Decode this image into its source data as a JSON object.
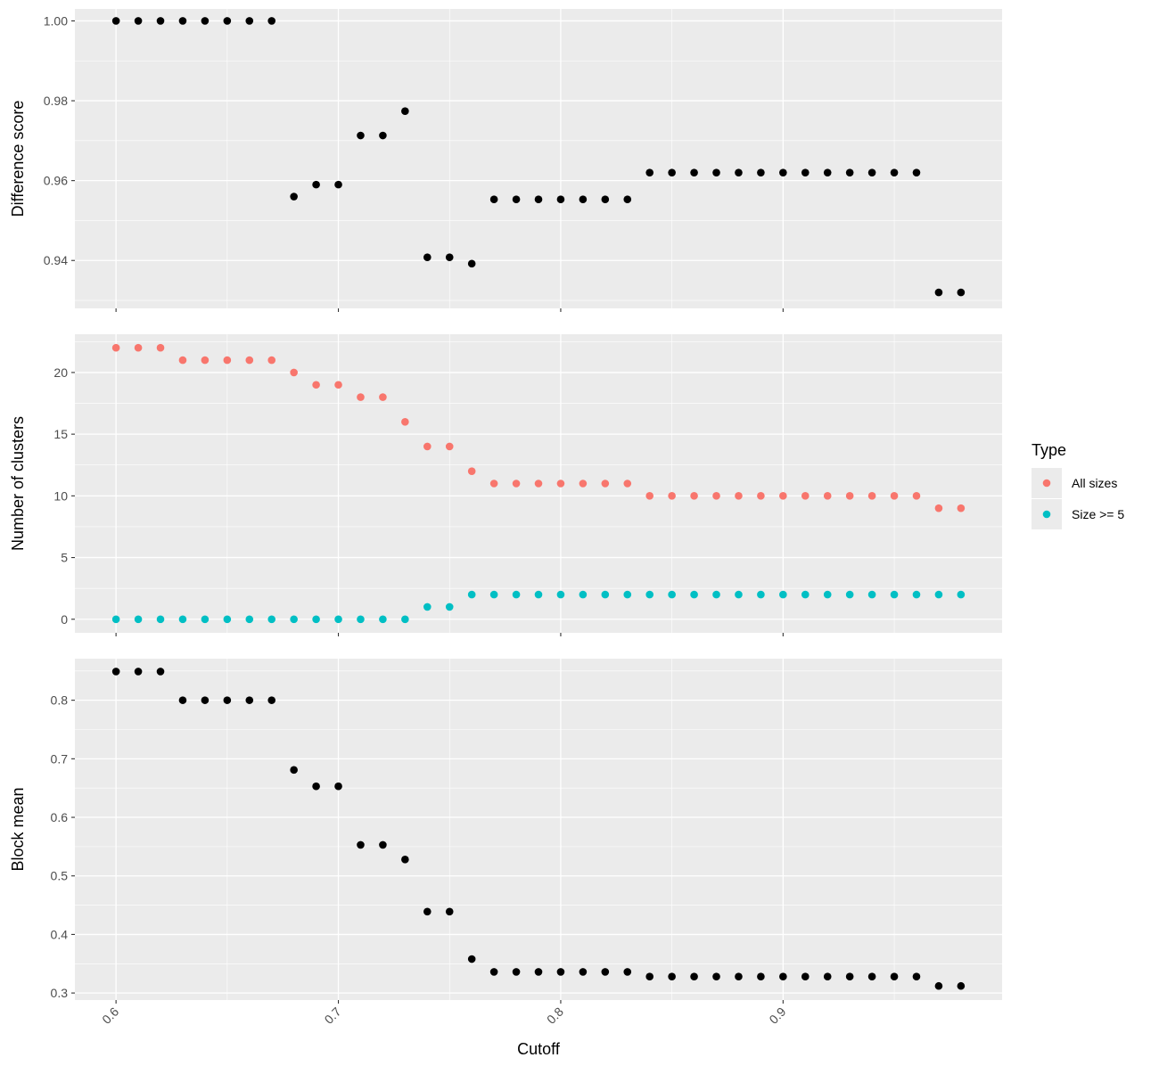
{
  "chart_data": [
    {
      "type": "scatter",
      "ylabel": "Difference score",
      "ylim": [
        0.928,
        1.003
      ],
      "yticks": [
        0.94,
        0.96,
        0.98,
        1.0
      ],
      "ytick_labels": [
        "0.94",
        "0.96",
        "0.98",
        "1.00"
      ],
      "grid": true,
      "series": [
        {
          "color": "#000000",
          "x": [
            0.6,
            0.61,
            0.62,
            0.63,
            0.64,
            0.65,
            0.66,
            0.67,
            0.68,
            0.69,
            0.7,
            0.71,
            0.72,
            0.73,
            0.74,
            0.75,
            0.76,
            0.77,
            0.78,
            0.79,
            0.8,
            0.81,
            0.82,
            0.83,
            0.84,
            0.85,
            0.86,
            0.87,
            0.88,
            0.89,
            0.9,
            0.91,
            0.92,
            0.93,
            0.94,
            0.95,
            0.96,
            0.97,
            0.98
          ],
          "y": [
            1.0,
            1.0,
            1.0,
            1.0,
            1.0,
            1.0,
            1.0,
            1.0,
            0.956,
            0.959,
            0.959,
            0.9713,
            0.9713,
            0.9774,
            0.9408,
            0.9408,
            0.9392,
            0.9553,
            0.9553,
            0.9553,
            0.9553,
            0.9553,
            0.9553,
            0.9553,
            0.962,
            0.962,
            0.962,
            0.962,
            0.962,
            0.962,
            0.962,
            0.962,
            0.962,
            0.962,
            0.962,
            0.962,
            0.962,
            0.932,
            0.932
          ]
        }
      ]
    },
    {
      "type": "scatter",
      "ylabel": "Number of clusters",
      "ylim": [
        -1.1,
        23.1
      ],
      "yticks": [
        0,
        5,
        10,
        15,
        20
      ],
      "ytick_labels": [
        "0",
        "5",
        "10",
        "15",
        "20"
      ],
      "grid": true,
      "legend": {
        "title": "Type",
        "placement": "right"
      },
      "series": [
        {
          "name": "All sizes",
          "color": "#F8766D",
          "x": [
            0.6,
            0.61,
            0.62,
            0.63,
            0.64,
            0.65,
            0.66,
            0.67,
            0.68,
            0.69,
            0.7,
            0.71,
            0.72,
            0.73,
            0.74,
            0.75,
            0.76,
            0.77,
            0.78,
            0.79,
            0.8,
            0.81,
            0.82,
            0.83,
            0.84,
            0.85,
            0.86,
            0.87,
            0.88,
            0.89,
            0.9,
            0.91,
            0.92,
            0.93,
            0.94,
            0.95,
            0.96,
            0.97,
            0.98
          ],
          "y": [
            22,
            22,
            22,
            21,
            21,
            21,
            21,
            21,
            20,
            19,
            19,
            18,
            18,
            16,
            14,
            14,
            12,
            11,
            11,
            11,
            11,
            11,
            11,
            11,
            10,
            10,
            10,
            10,
            10,
            10,
            10,
            10,
            10,
            10,
            10,
            10,
            10,
            9,
            9
          ]
        },
        {
          "name": "Size >= 5",
          "color": "#00BFC4",
          "x": [
            0.6,
            0.61,
            0.62,
            0.63,
            0.64,
            0.65,
            0.66,
            0.67,
            0.68,
            0.69,
            0.7,
            0.71,
            0.72,
            0.73,
            0.74,
            0.75,
            0.76,
            0.77,
            0.78,
            0.79,
            0.8,
            0.81,
            0.82,
            0.83,
            0.84,
            0.85,
            0.86,
            0.87,
            0.88,
            0.89,
            0.9,
            0.91,
            0.92,
            0.93,
            0.94,
            0.95,
            0.96,
            0.97,
            0.98
          ],
          "y": [
            0,
            0,
            0,
            0,
            0,
            0,
            0,
            0,
            0,
            0,
            0,
            0,
            0,
            0,
            1,
            1,
            2,
            2,
            2,
            2,
            2,
            2,
            2,
            2,
            2,
            2,
            2,
            2,
            2,
            2,
            2,
            2,
            2,
            2,
            2,
            2,
            2,
            2,
            2
          ]
        }
      ]
    },
    {
      "type": "scatter",
      "xlabel": "Cutoff",
      "ylabel": "Block mean",
      "ylim": [
        0.288,
        0.871
      ],
      "yticks": [
        0.3,
        0.4,
        0.5,
        0.6,
        0.7,
        0.8
      ],
      "ytick_labels": [
        "0.3",
        "0.4",
        "0.5",
        "0.6",
        "0.7",
        "0.8"
      ],
      "grid": true,
      "series": [
        {
          "color": "#000000",
          "x": [
            0.6,
            0.61,
            0.62,
            0.63,
            0.64,
            0.65,
            0.66,
            0.67,
            0.68,
            0.69,
            0.7,
            0.71,
            0.72,
            0.73,
            0.74,
            0.75,
            0.76,
            0.77,
            0.78,
            0.79,
            0.8,
            0.81,
            0.82,
            0.83,
            0.84,
            0.85,
            0.86,
            0.87,
            0.88,
            0.89,
            0.9,
            0.91,
            0.92,
            0.93,
            0.94,
            0.95,
            0.96,
            0.97,
            0.98
          ],
          "y": [
            0.849,
            0.849,
            0.849,
            0.8,
            0.8,
            0.8,
            0.8,
            0.8,
            0.681,
            0.653,
            0.653,
            0.553,
            0.553,
            0.528,
            0.439,
            0.439,
            0.358,
            0.336,
            0.336,
            0.336,
            0.336,
            0.336,
            0.336,
            0.336,
            0.328,
            0.328,
            0.328,
            0.328,
            0.328,
            0.328,
            0.328,
            0.328,
            0.328,
            0.328,
            0.328,
            0.328,
            0.328,
            0.312,
            0.312
          ]
        }
      ]
    }
  ],
  "x_axis": {
    "xlim": [
      0.5815,
      0.9985
    ],
    "ticks": [
      0.6,
      0.7,
      0.8,
      0.9
    ],
    "tick_labels": [
      "0.6",
      "0.7",
      "0.8",
      "0.9"
    ],
    "label": "Cutoff"
  },
  "colors": {
    "panel_background": "#EBEBEB",
    "grid": "#FFFFFF",
    "axis_text": "#4D4D4D",
    "tick": "#333333",
    "text": "#000000"
  }
}
